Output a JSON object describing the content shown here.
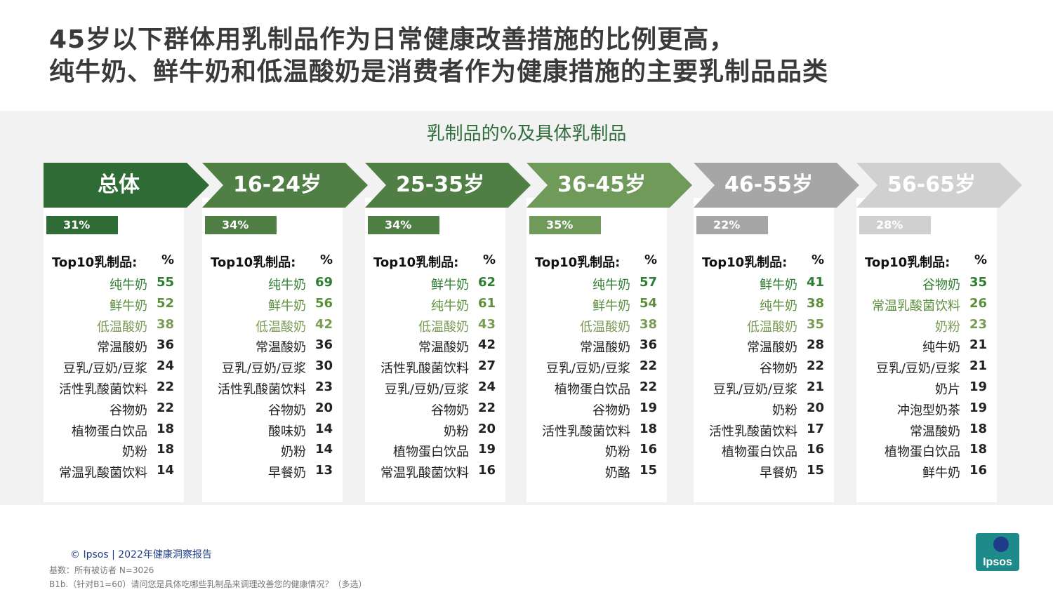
{
  "title": {
    "line1": "45岁以下群体用乳制品作为日常健康改善措施的比例更高，",
    "line2": "纯牛奶、鲜牛奶和低温酸奶是消费者作为健康措施的主要乳制品品类"
  },
  "subtitle": "乳制品的%及具体乳制品",
  "colors": {
    "green_dark": "#2e6b35",
    "green_mid": "#4f7f45",
    "green_light": "#6f9a5a",
    "grey_mid": "#a6a6a6",
    "grey_light": "#d0d0d0"
  },
  "chart_data": {
    "type": "table",
    "table_header": {
      "label": "Top10乳制品:",
      "pct": "%"
    },
    "groups": [
      {
        "label": "总体",
        "share": "31%",
        "share_value": 31,
        "items": [
          {
            "name": "纯牛奶",
            "value": 55
          },
          {
            "name": "鲜牛奶",
            "value": 52
          },
          {
            "name": "低温酸奶",
            "value": 38
          },
          {
            "name": "常温酸奶",
            "value": 36
          },
          {
            "name": "豆乳/豆奶/豆浆",
            "value": 24
          },
          {
            "name": "活性乳酸菌饮料",
            "value": 22
          },
          {
            "name": "谷物奶",
            "value": 22
          },
          {
            "name": "植物蛋白饮品",
            "value": 18
          },
          {
            "name": "奶粉",
            "value": 18
          },
          {
            "name": "常温乳酸菌饮料",
            "value": 14
          }
        ]
      },
      {
        "label": "16-24岁",
        "share": "34%",
        "share_value": 34,
        "items": [
          {
            "name": "纯牛奶",
            "value": 69
          },
          {
            "name": "鲜牛奶",
            "value": 56
          },
          {
            "name": "低温酸奶",
            "value": 42
          },
          {
            "name": "常温酸奶",
            "value": 36
          },
          {
            "name": "豆乳/豆奶/豆浆",
            "value": 30
          },
          {
            "name": "活性乳酸菌饮料",
            "value": 23
          },
          {
            "name": "谷物奶",
            "value": 20
          },
          {
            "name": "酸味奶",
            "value": 14
          },
          {
            "name": "奶粉",
            "value": 14
          },
          {
            "name": "早餐奶",
            "value": 13
          }
        ]
      },
      {
        "label": "25-35岁",
        "share": "34%",
        "share_value": 34,
        "items": [
          {
            "name": "鲜牛奶",
            "value": 62
          },
          {
            "name": "纯牛奶",
            "value": 61
          },
          {
            "name": "低温酸奶",
            "value": 43
          },
          {
            "name": "常温酸奶",
            "value": 42
          },
          {
            "name": "活性乳酸菌饮料",
            "value": 27
          },
          {
            "name": "豆乳/豆奶/豆浆",
            "value": 24
          },
          {
            "name": "谷物奶",
            "value": 22
          },
          {
            "name": "奶粉",
            "value": 20
          },
          {
            "name": "植物蛋白饮品",
            "value": 19
          },
          {
            "name": "常温乳酸菌饮料",
            "value": 16
          }
        ]
      },
      {
        "label": "36-45岁",
        "share": "35%",
        "share_value": 35,
        "items": [
          {
            "name": "纯牛奶",
            "value": 57
          },
          {
            "name": "鲜牛奶",
            "value": 54
          },
          {
            "name": "低温酸奶",
            "value": 38
          },
          {
            "name": "常温酸奶",
            "value": 36
          },
          {
            "name": "豆乳/豆奶/豆浆",
            "value": 22
          },
          {
            "name": "植物蛋白饮品",
            "value": 22
          },
          {
            "name": "谷物奶",
            "value": 19
          },
          {
            "name": "活性乳酸菌饮料",
            "value": 18
          },
          {
            "name": "奶粉",
            "value": 16
          },
          {
            "name": "奶酪",
            "value": 15
          }
        ]
      },
      {
        "label": "46-55岁",
        "share": "22%",
        "share_value": 22,
        "items": [
          {
            "name": "鲜牛奶",
            "value": 41
          },
          {
            "name": "纯牛奶",
            "value": 38
          },
          {
            "name": "低温酸奶",
            "value": 35
          },
          {
            "name": "常温酸奶",
            "value": 28
          },
          {
            "name": "谷物奶",
            "value": 22
          },
          {
            "name": "豆乳/豆奶/豆浆",
            "value": 21
          },
          {
            "name": "奶粉",
            "value": 20
          },
          {
            "name": "活性乳酸菌饮料",
            "value": 17
          },
          {
            "name": "植物蛋白饮品",
            "value": 16
          },
          {
            "name": "早餐奶",
            "value": 15
          }
        ]
      },
      {
        "label": "56-65岁",
        "share": "28%",
        "share_value": 28,
        "items": [
          {
            "name": "谷物奶",
            "value": 35
          },
          {
            "name": "常温乳酸菌饮料",
            "value": 26
          },
          {
            "name": "奶粉",
            "value": 23
          },
          {
            "name": "纯牛奶",
            "value": 21
          },
          {
            "name": "豆乳/豆奶/豆浆",
            "value": 21
          },
          {
            "name": "奶片",
            "value": 19
          },
          {
            "name": "冲泡型奶茶",
            "value": 19
          },
          {
            "name": "常温酸奶",
            "value": 18
          },
          {
            "name": "植物蛋白饮品",
            "value": 18
          },
          {
            "name": "鲜牛奶",
            "value": 16
          }
        ]
      }
    ]
  },
  "footer": {
    "brand": "© Ipsos | 2022年健康洞察报告",
    "base": "基数：所有被访者  N=3026",
    "question": "B1b.（针对B1=60）请问您是具体吃哪些乳制品来调理改善您的健康情况？（多选）"
  },
  "logo": {
    "text": "Ipsos",
    "icon": "ipsos-logo"
  }
}
